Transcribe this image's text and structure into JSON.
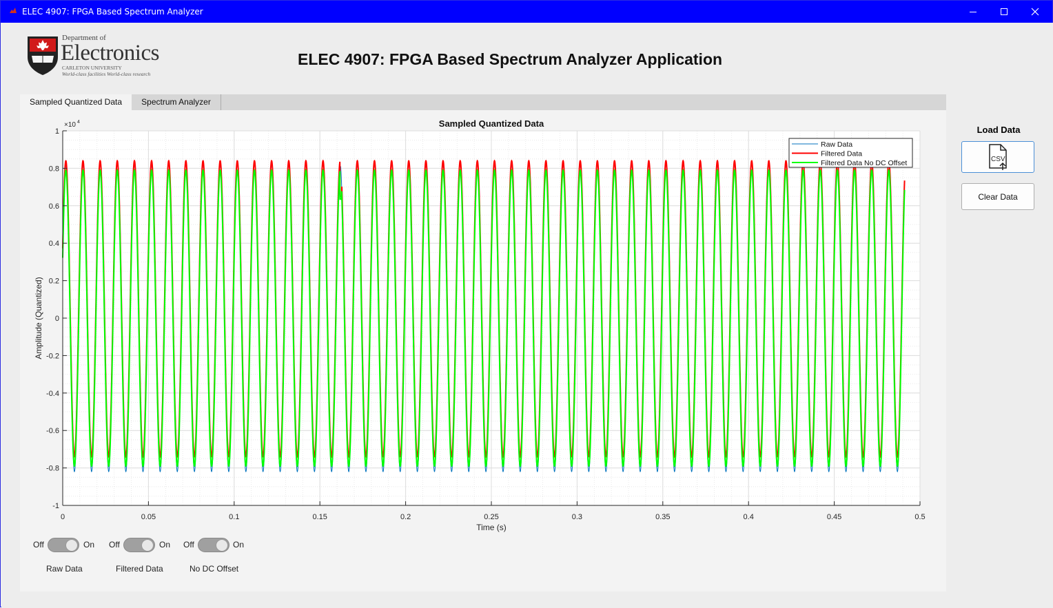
{
  "window": {
    "title": "ELEC 4907: FPGA Based Spectrum Analyzer",
    "minimize_icon": "minimize-icon",
    "maximize_icon": "maximize-icon",
    "close_icon": "close-icon"
  },
  "logo": {
    "line1": "Department of",
    "line2": "Electronics",
    "line3": "CARLETON UNIVERSITY",
    "line4": "World-class facilities  World-class research"
  },
  "app_title": "ELEC 4907: FPGA Based Spectrum Analyzer Application",
  "tabs": [
    {
      "label": "Sampled Quantized Data",
      "active": true
    },
    {
      "label": "Spectrum Analyzer",
      "active": false
    }
  ],
  "side": {
    "load_label": "Load Data",
    "load_icon": "csv-file-upload-icon",
    "load_icon_text": "CSV",
    "clear_label": "Clear Data"
  },
  "toggles": [
    {
      "off": "Off",
      "on": "On",
      "label": "Raw Data",
      "state": "off"
    },
    {
      "off": "Off",
      "on": "On",
      "label": "Filtered Data",
      "state": "off"
    },
    {
      "off": "Off",
      "on": "On",
      "label": "No DC Offset",
      "state": "off"
    }
  ],
  "chart_data": {
    "type": "line",
    "title": "Sampled Quantized Data",
    "xlabel": "Time (s)",
    "ylabel": "Amplitude (Quantized)",
    "exponent_label": "×10",
    "exponent_power": "4",
    "xlim": [
      0,
      0.5
    ],
    "ylim": [
      -10000,
      10000
    ],
    "x_ticks": [
      "0",
      "0.05",
      "0.1",
      "0.15",
      "0.2",
      "0.25",
      "0.3",
      "0.35",
      "0.4",
      "0.45",
      "0.5"
    ],
    "y_ticks": [
      "1",
      "0.8",
      "0.6",
      "0.4",
      "0.2",
      "0",
      "-0.2",
      "-0.4",
      "-0.6",
      "-0.8",
      "-1"
    ],
    "grid": true,
    "minor_grid": true,
    "legend_position": "top-right",
    "series": [
      {
        "name": "Raw Data",
        "color": "#0072bd",
        "frequency_hz": 100,
        "amplitude": 8200,
        "offset": 0,
        "x_end": 0.491,
        "glitches_at": [
          0.1635,
          0.3275
        ]
      },
      {
        "name": "Filtered Data",
        "color": "#ff0000",
        "frequency_hz": 100,
        "amplitude": 7900,
        "offset": 500,
        "x_end": 0.491,
        "glitches_at": [
          0.1635,
          0.3275
        ]
      },
      {
        "name": "Filtered Data No DC Offset",
        "color": "#00ff00",
        "frequency_hz": 100,
        "amplitude": 7900,
        "offset": 0,
        "x_end": 0.491,
        "glitches_at": [
          0.1635,
          0.3275
        ]
      }
    ]
  }
}
